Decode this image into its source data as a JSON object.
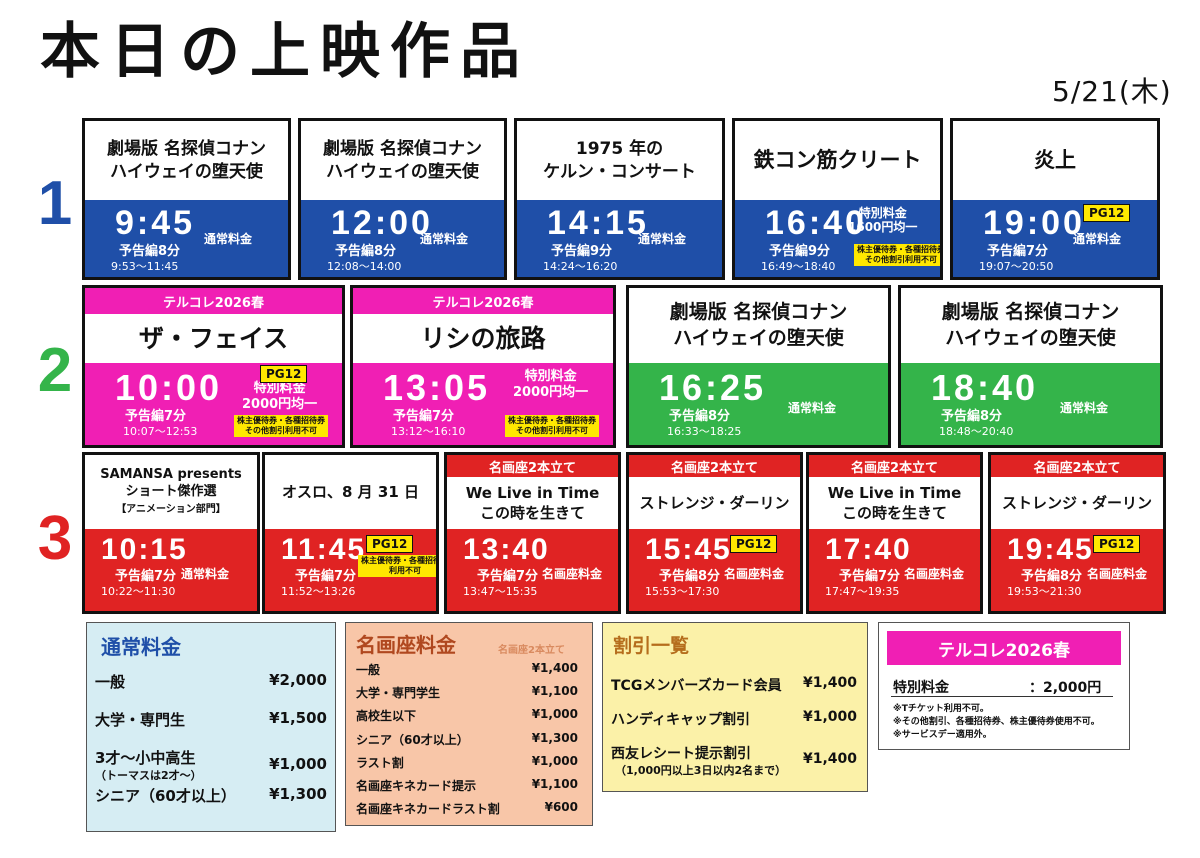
{
  "page": {
    "title": "本日の上映作品",
    "date": "5/21(木)"
  },
  "screens": [
    {
      "number": "1",
      "color": "#1f4fa8",
      "shows": [
        {
          "title_lines": [
            "劇場版 名探偵コナン",
            "ハイウェイの堕天使"
          ],
          "time": "9:45",
          "trailer": "予告編8分",
          "range": "9:53～11:45",
          "fare": "通常料金"
        },
        {
          "title_lines": [
            "劇場版 名探偵コナン",
            "ハイウェイの堕天使"
          ],
          "time": "12:00",
          "trailer": "予告編8分",
          "range": "12:08～14:00",
          "fare": "通常料金"
        },
        {
          "title_lines": [
            "1975 年の",
            "ケルン・コンサート"
          ],
          "time": "14:15",
          "trailer": "予告編9分",
          "range": "14:24～16:20",
          "fare": "通常料金"
        },
        {
          "title_lines": [
            "鉄コン筋クリート"
          ],
          "time": "16:40",
          "trailer": "予告編9分",
          "range": "16:49～18:40",
          "fare_lines": [
            "特別料金",
            "1600円均一"
          ],
          "note_lines": [
            "株主優待券・各種招待券",
            "その他割引利用不可"
          ]
        },
        {
          "title_lines": [
            "炎上"
          ],
          "time": "19:00",
          "trailer": "予告編7分",
          "range": "19:07～20:50",
          "fare": "通常料金",
          "rating": "PG12"
        }
      ]
    },
    {
      "number": "2",
      "color": "#34b44a",
      "shows": [
        {
          "series": "テルコレ2026春",
          "title_lines": [
            "ザ・フェイス"
          ],
          "time": "10:00",
          "trailer": "予告編7分",
          "range": "10:07～12:53",
          "rating": "PG12",
          "fare_lines": [
            "特別料金",
            "2000円均一"
          ],
          "note_lines": [
            "株主優待券・各種招待券",
            "その他割引利用不可"
          ]
        },
        {
          "series": "テルコレ2026春",
          "title_lines": [
            "リシの旅路"
          ],
          "time": "13:05",
          "trailer": "予告編7分",
          "range": "13:12～16:10",
          "fare_lines": [
            "特別料金",
            "2000円均一"
          ],
          "note_lines": [
            "株主優待券・各種招待券",
            "その他割引利用不可"
          ]
        },
        {
          "title_lines": [
            "劇場版 名探偵コナン",
            "ハイウェイの堕天使"
          ],
          "time": "16:25",
          "trailer": "予告編8分",
          "range": "16:33～18:25",
          "fare": "通常料金"
        },
        {
          "title_lines": [
            "劇場版 名探偵コナン",
            "ハイウェイの堕天使"
          ],
          "time": "18:40",
          "trailer": "予告編8分",
          "range": "18:48～20:40",
          "fare": "通常料金"
        }
      ]
    },
    {
      "number": "3",
      "color": "#e02323",
      "shows": [
        {
          "title_lines": [
            "SAMANSA presents",
            "ショート傑作選",
            "【アニメーション部門】"
          ],
          "time": "10:15",
          "trailer": "予告編7分",
          "range": "10:22～11:30",
          "fare": "通常料金"
        },
        {
          "title_lines": [
            "オスロ、8 月 31 日"
          ],
          "time": "11:45",
          "trailer": "予告編7分",
          "range": "11:52～13:26",
          "rating": "PG12",
          "note_lines": [
            "株主優待券・各種招待券",
            "利用不可"
          ]
        },
        {
          "series": "名画座2本立て",
          "title_lines": [
            "We Live in Time",
            "この時を生きて"
          ],
          "time": "13:40",
          "trailer": "予告編7分",
          "range": "13:47～15:35",
          "fare": "名画座料金"
        },
        {
          "series": "名画座2本立て",
          "title_lines": [
            "ストレンジ・ダーリン"
          ],
          "time": "15:45",
          "trailer": "予告編8分",
          "range": "15:53～17:30",
          "fare": "名画座料金",
          "rating": "PG12"
        },
        {
          "series": "名画座2本立て",
          "title_lines": [
            "We Live in Time",
            "この時を生きて"
          ],
          "time": "17:40",
          "trailer": "予告編7分",
          "range": "17:47～19:35",
          "fare": "名画座料金"
        },
        {
          "series": "名画座2本立て",
          "title_lines": [
            "ストレンジ・ダーリン"
          ],
          "time": "19:45",
          "trailer": "予告編8分",
          "range": "19:53～21:30",
          "fare": "名画座料金",
          "rating": "PG12"
        }
      ]
    }
  ],
  "prices": {
    "regular": {
      "title": "通常料金",
      "rows": [
        {
          "label": "一般",
          "value": "¥2,000"
        },
        {
          "label": "大学・専門生",
          "value": "¥1,500"
        },
        {
          "label": "3才～小中高生",
          "sub": "（トーマスは2才～）",
          "value": "¥1,000"
        },
        {
          "label": "シニア（60才以上）",
          "value": "¥1,300"
        }
      ]
    },
    "meigaza": {
      "title": "名画座料金",
      "subtitle": "名画座2本立て",
      "rows": [
        {
          "label": "一般",
          "value": "¥1,400"
        },
        {
          "label": "大学・専門学生",
          "value": "¥1,100"
        },
        {
          "label": "高校生以下",
          "value": "¥1,000"
        },
        {
          "label": "シニア（60才以上）",
          "value": "¥1,300"
        },
        {
          "label": "ラスト割",
          "value": "¥1,000"
        },
        {
          "label": "名画座キネカード提示",
          "value": "¥1,100"
        },
        {
          "label": "名画座キネカードラスト割",
          "value": "¥600"
        }
      ]
    },
    "discount": {
      "title": "割引一覧",
      "rows": [
        {
          "label": "TCGメンバーズカード会員",
          "value": "¥1,400"
        },
        {
          "label": "ハンディキャップ割引",
          "value": "¥1,000"
        },
        {
          "label": "西友レシート提示割引",
          "sub": "（1,000円以上3日以内2名まで）",
          "value": "¥1,400"
        }
      ]
    },
    "terucore": {
      "title": "テルコレ2026春",
      "label": "特別料金",
      "value": "：2,000円",
      "notes": [
        "※Tチケット利用不可。",
        "※その他割引、各種招待券、株主優待券使用不可。",
        "※サービスデー適用外。"
      ]
    }
  },
  "colors": {
    "blue": "#1f4fa8",
    "green": "#34b44a",
    "red": "#e02323",
    "pink": "#f01fb4",
    "yellow": "#ffe800"
  }
}
